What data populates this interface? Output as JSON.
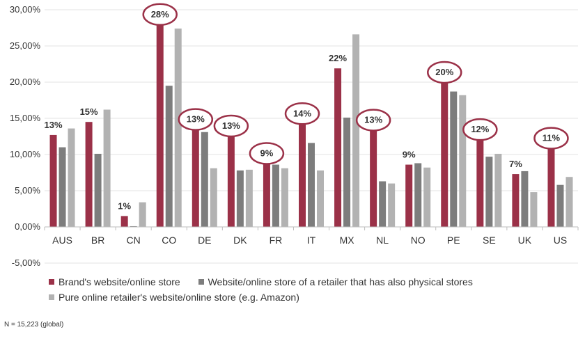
{
  "chart_data": {
    "type": "bar",
    "categories": [
      "AUS",
      "BR",
      "CN",
      "CO",
      "DE",
      "DK",
      "FR",
      "IT",
      "MX",
      "NL",
      "NO",
      "PE",
      "SE",
      "UK",
      "US"
    ],
    "series": [
      {
        "name": "Brand's website/online store",
        "color": "#9b3148",
        "values": [
          12.7,
          14.5,
          1.5,
          28.0,
          13.5,
          12.6,
          8.8,
          14.3,
          21.9,
          13.4,
          8.6,
          20.0,
          12.1,
          7.3,
          10.9
        ]
      },
      {
        "name": "Website/online store of a retailer that has also physical stores",
        "color": "#7d7d7d",
        "values": [
          11.0,
          10.1,
          0.1,
          19.5,
          13.1,
          7.8,
          8.6,
          11.6,
          15.1,
          6.3,
          8.8,
          18.7,
          9.7,
          7.7,
          5.8
        ]
      },
      {
        "name": "Pure online retailer's website/online store (e.g. Amazon)",
        "color": "#b2b2b2",
        "values": [
          13.6,
          16.2,
          3.4,
          27.4,
          8.1,
          7.9,
          8.1,
          7.8,
          26.6,
          6.0,
          8.2,
          18.2,
          10.1,
          4.8,
          6.9
        ]
      }
    ],
    "data_labels": [
      "13%",
      "15%",
      "1%",
      "28%",
      "13%",
      "13%",
      "9%",
      "14%",
      "22%",
      "13%",
      "9%",
      "20%",
      "12%",
      "7%",
      "11%"
    ],
    "highlighted": [
      false,
      false,
      false,
      true,
      true,
      true,
      true,
      true,
      false,
      true,
      false,
      true,
      true,
      false,
      true
    ],
    "yticks": [
      "-5,00%",
      "0,00%",
      "5,00%",
      "10,00%",
      "15,00%",
      "20,00%",
      "25,00%",
      "30,00%"
    ],
    "ylim": [
      -5,
      30
    ],
    "grid": true,
    "legend_position": "bottom",
    "highlight_color": "#9b3148"
  },
  "footnote": "N = 15,223  (global)"
}
